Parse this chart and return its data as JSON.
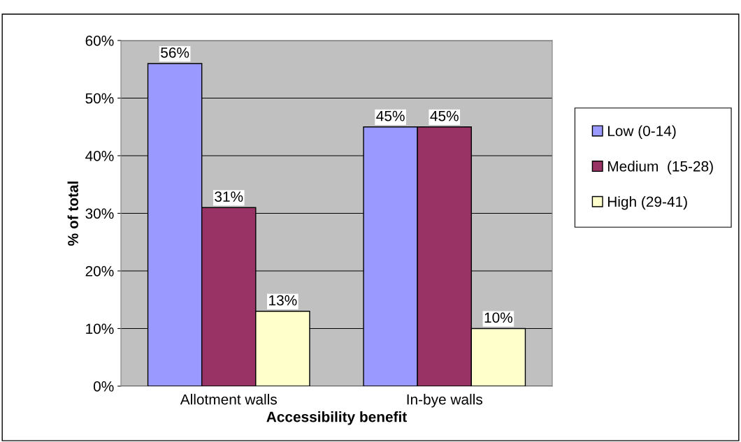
{
  "chart_data": {
    "type": "bar",
    "xlabel": "Accessibility benefit",
    "ylabel": "% of total",
    "categories": [
      "Allotment walls",
      "In-bye walls"
    ],
    "series": [
      {
        "name": "Low (0-14)",
        "color": "#9999ff",
        "values": [
          56,
          45
        ]
      },
      {
        "name": "Medium  (15-28)",
        "color": "#993366",
        "values": [
          31,
          45
        ]
      },
      {
        "name": "High (29-41)",
        "color": "#ffffcc",
        "values": [
          13,
          10
        ]
      }
    ],
    "value_labels": [
      [
        "56%",
        "45%"
      ],
      [
        "31%",
        "45%"
      ],
      [
        "13%",
        "10%"
      ]
    ],
    "ylim": [
      0,
      60
    ],
    "yticks": [
      {
        "value": 0,
        "label": "0%"
      },
      {
        "value": 10,
        "label": "10%"
      },
      {
        "value": 20,
        "label": "20%"
      },
      {
        "value": 30,
        "label": "30%"
      },
      {
        "value": 40,
        "label": "40%"
      },
      {
        "value": 50,
        "label": "50%"
      },
      {
        "value": 60,
        "label": "60%"
      }
    ],
    "grid": "y",
    "legend": "right"
  }
}
